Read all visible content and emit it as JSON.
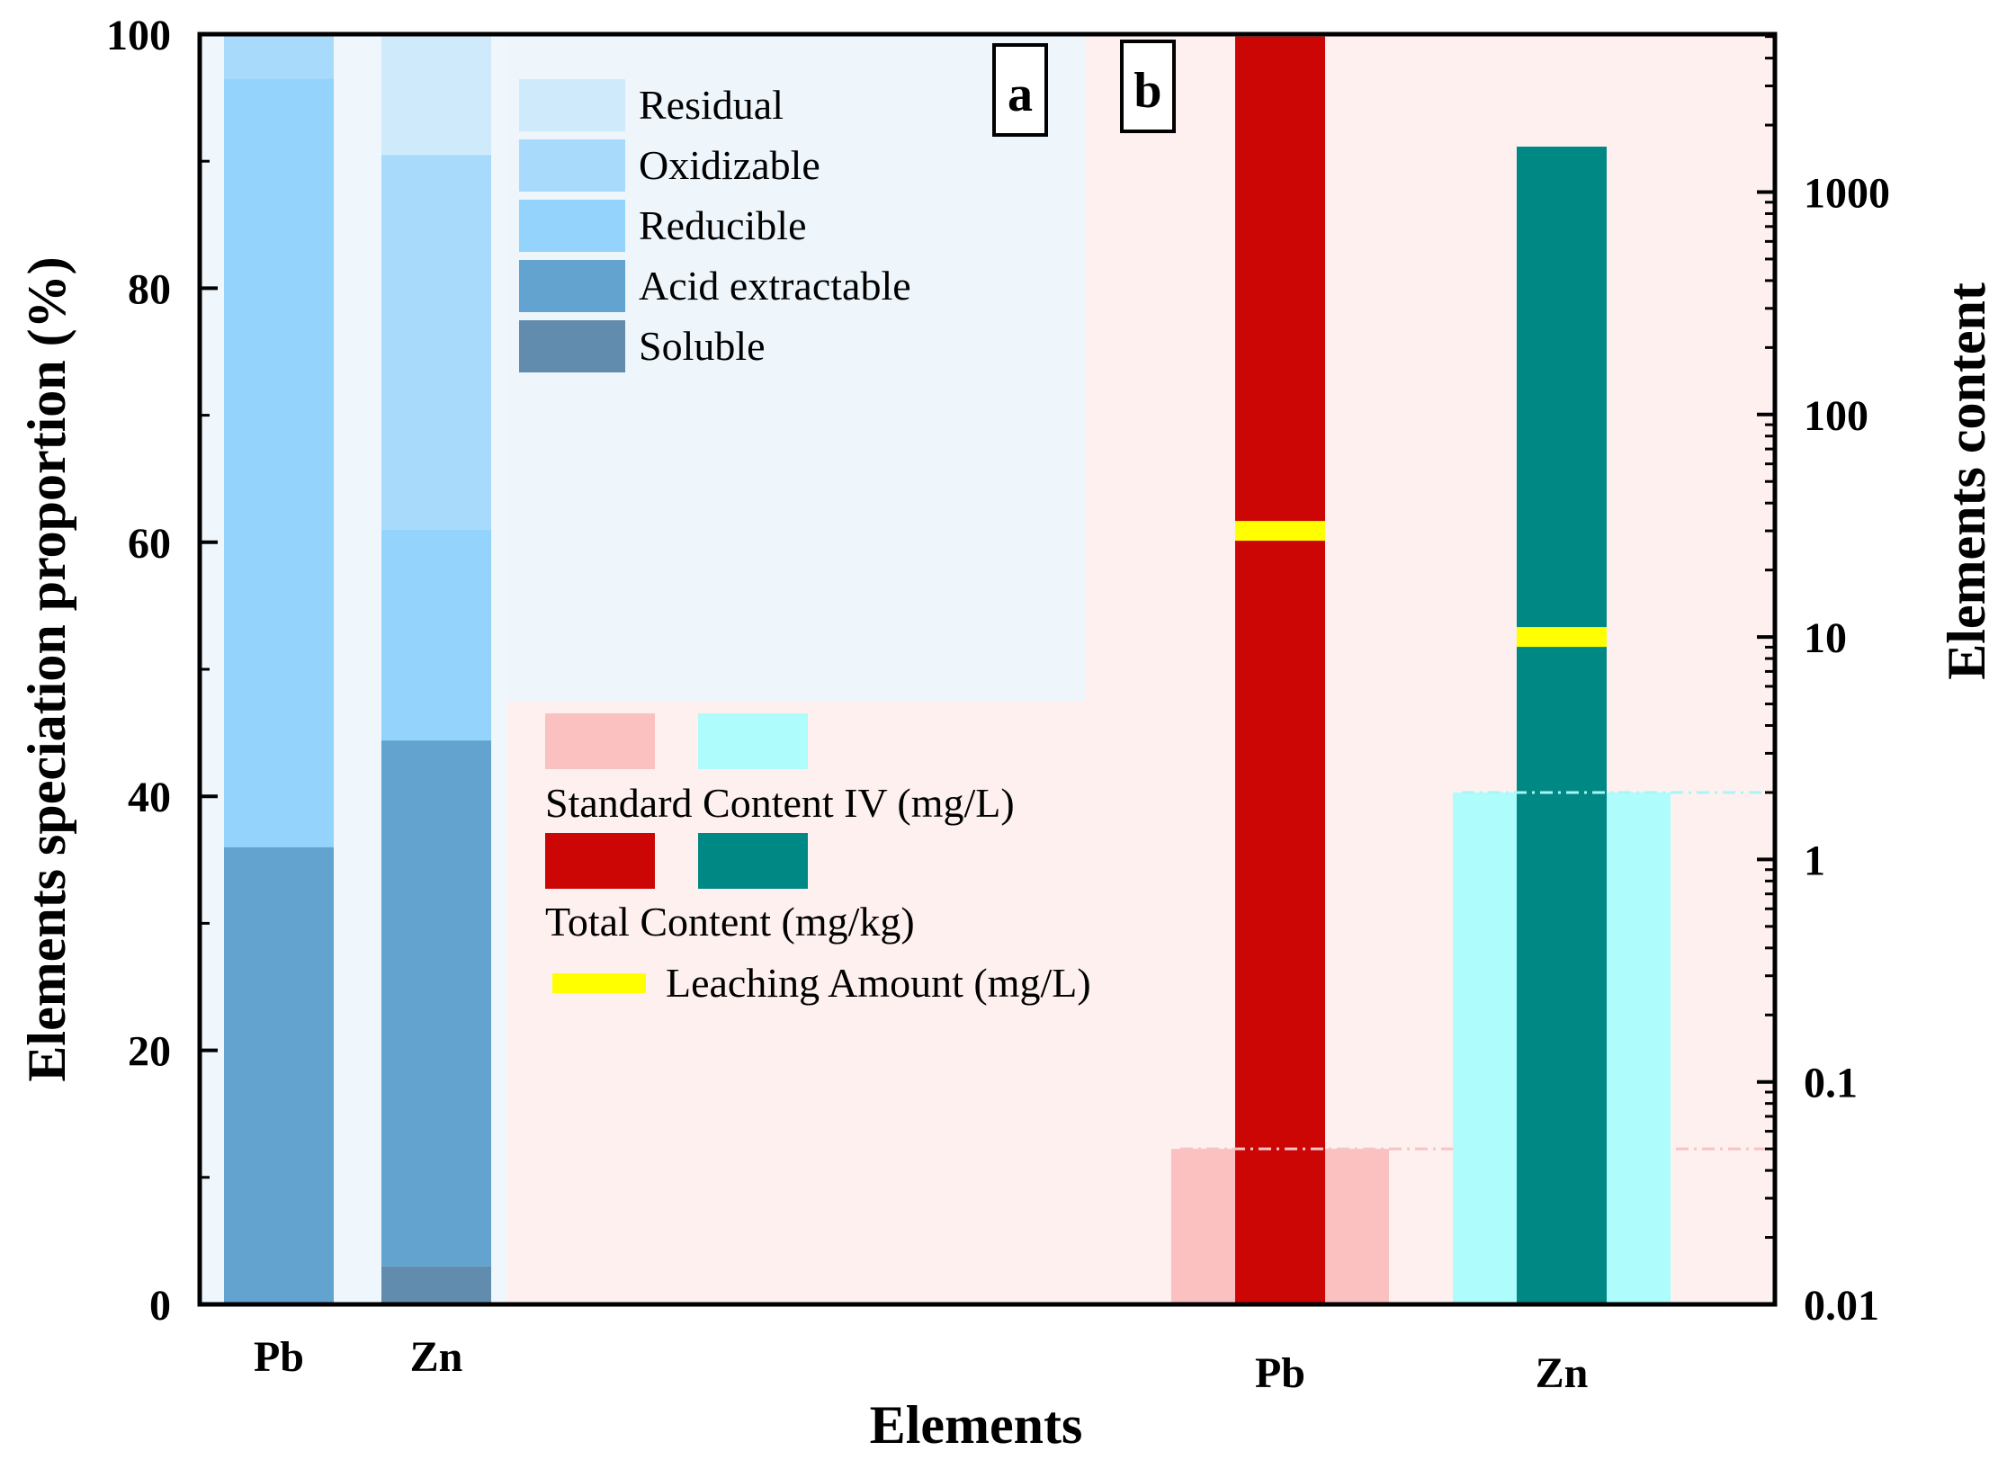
{
  "chart_data": [
    {
      "panel": "a",
      "type": "bar",
      "stacked": true,
      "categories": [
        "Pb",
        "Zn"
      ],
      "ylabel": "Elements speciation proportion (%)",
      "ylim": [
        0,
        100
      ],
      "yticks": [
        "0",
        "20",
        "40",
        "60",
        "80",
        "100"
      ],
      "series": [
        {
          "name": "Soluble",
          "color": "#628cad",
          "values": [
            0,
            3
          ]
        },
        {
          "name": "Acid extractable",
          "color": "#62a3cf",
          "values": [
            36,
            41.4
          ]
        },
        {
          "name": "Reducible",
          "color": "#93d3fc",
          "values": [
            60.5,
            16.6
          ]
        },
        {
          "name": "Oxidizable",
          "color": "#a8dbfb",
          "values": [
            3.5,
            29.5
          ]
        },
        {
          "name": "Residual",
          "color": "#cfeafb",
          "values": [
            0,
            9.5
          ]
        }
      ],
      "legend": [
        "Residual",
        "Oxidizable",
        "Reducible",
        "Acid extractable",
        "Soluble"
      ]
    },
    {
      "panel": "b",
      "type": "bar",
      "yscale": "log",
      "categories": [
        "Pb",
        "Zn"
      ],
      "ylabel": "Elements content",
      "ylim": [
        0.01,
        5000
      ],
      "yticks": [
        "0.01",
        "0.1",
        "1",
        "10",
        "100",
        "1000"
      ],
      "standard_content": {
        "name": "Standard Content IV (mg/L)",
        "colors": [
          "#fbc0c0",
          "#aefcfc"
        ],
        "values": [
          0.05,
          2
        ]
      },
      "total_content": {
        "name": "Total Content (mg/kg)",
        "colors": [
          "#cc0505",
          "#008885"
        ],
        "values": [
          5000,
          1600
        ]
      },
      "leaching_amount": {
        "name": "Leaching Amount (mg/L)",
        "color": "#ffff00",
        "values": [
          30,
          10
        ]
      }
    }
  ],
  "xlabel": "Elements",
  "panel_labels": [
    "a",
    "b"
  ]
}
